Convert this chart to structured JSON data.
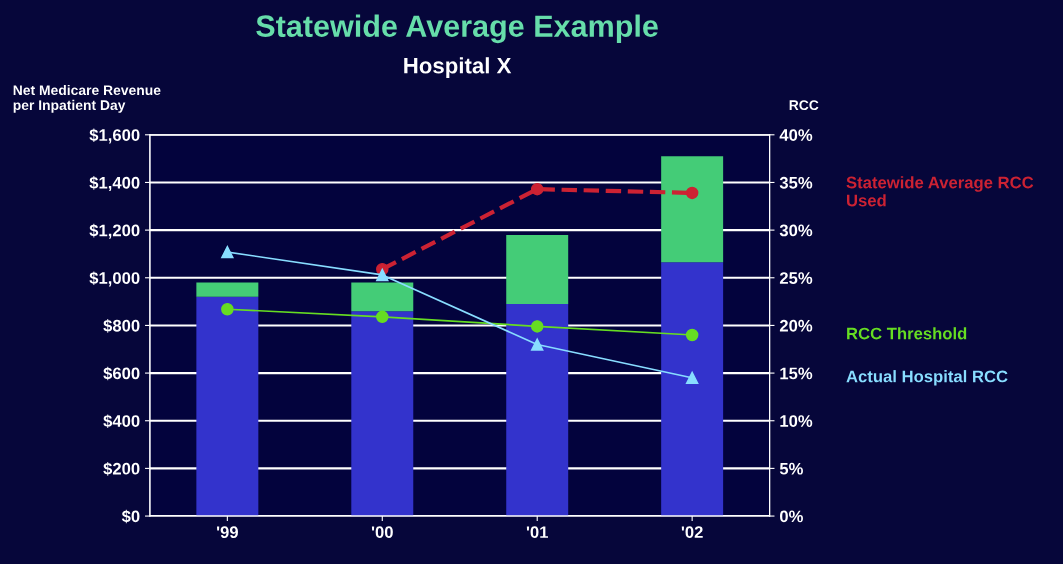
{
  "chart_data": {
    "type": "bar",
    "title": "Statewide Average Example",
    "subtitle": "Hospital X",
    "ylabel": "Net Medicare Revenue\nper Inpatient Day",
    "y2label": "RCC",
    "categories": [
      "'99",
      "'00",
      "'01",
      "'02"
    ],
    "stacked": true,
    "series": [
      {
        "color": "#3333cc",
        "values": [
          920,
          860,
          890,
          1065
        ]
      },
      {
        "color": "#44cc77",
        "values": [
          60,
          120,
          290,
          445
        ]
      },
      {
        "name": "Statewide Average RCC Used",
        "type": "line",
        "axis": "y2",
        "color": "#cc2233",
        "line_style": "dashed",
        "marker": "circle",
        "values": [
          null,
          25.9,
          34.3,
          33.9
        ]
      },
      {
        "name": "RCC Threshold",
        "type": "line",
        "axis": "y2",
        "color": "#66dd22",
        "marker": "circle",
        "values": [
          21.7,
          20.9,
          19.9,
          19.0
        ]
      },
      {
        "name": "Actual Hospital RCC",
        "type": "line",
        "axis": "y2",
        "color": "#88ddff",
        "marker": "triangle",
        "values": [
          27.7,
          25.3,
          18.0,
          14.5
        ]
      }
    ],
    "ylim": [
      0,
      1600
    ],
    "yticks": [
      {
        "value": 0,
        "label": "$0"
      },
      {
        "value": 200,
        "label": "$200"
      },
      {
        "value": 400,
        "label": "$400"
      },
      {
        "value": 600,
        "label": "$600"
      },
      {
        "value": 800,
        "label": "$800"
      },
      {
        "value": 1000,
        "label": "$1,000"
      },
      {
        "value": 1200,
        "label": "$1,200"
      },
      {
        "value": 1400,
        "label": "$1,400"
      },
      {
        "value": 1600,
        "label": "$1,600"
      }
    ],
    "y2lim": [
      0,
      40
    ],
    "y2ticks": [
      {
        "value": 0,
        "label": "0%"
      },
      {
        "value": 5,
        "label": "5%"
      },
      {
        "value": 10,
        "label": "10%"
      },
      {
        "value": 15,
        "label": "15%"
      },
      {
        "value": 20,
        "label": "20%"
      },
      {
        "value": 25,
        "label": "25%"
      },
      {
        "value": 30,
        "label": "30%"
      },
      {
        "value": 35,
        "label": "35%"
      },
      {
        "value": 40,
        "label": "40%"
      }
    ],
    "grid": "y"
  }
}
